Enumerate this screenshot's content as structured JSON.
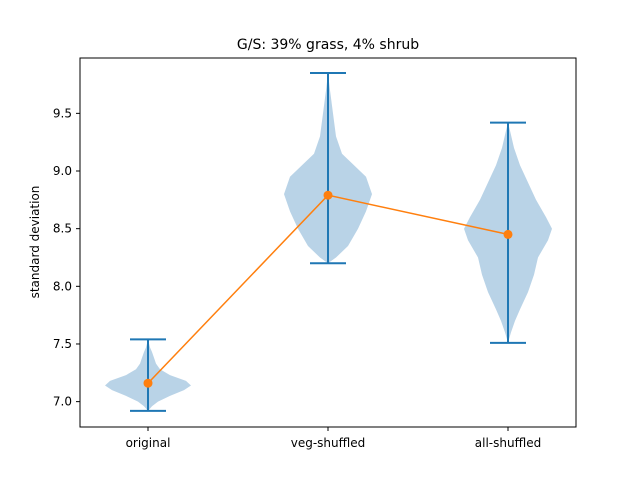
{
  "chart_data": {
    "type": "violin",
    "title": "G/S: 39% grass, 4% shrub",
    "xlabel": "",
    "ylabel": "standard deviation",
    "categories": [
      "original",
      "veg-shuffled",
      "all-shuffled"
    ],
    "ylim": [
      6.78,
      9.98
    ],
    "yticks": [
      7.0,
      7.5,
      8.0,
      8.5,
      9.0,
      9.5
    ],
    "ytick_labels": [
      "7.0",
      "7.5",
      "8.0",
      "8.5",
      "9.0",
      "9.5"
    ],
    "violins": [
      {
        "category": "original",
        "min": 6.92,
        "max": 7.54,
        "mean": 7.16
      },
      {
        "category": "veg-shuffled",
        "min": 8.2,
        "max": 9.85,
        "mean": 8.79
      },
      {
        "category": "all-shuffled",
        "min": 7.51,
        "max": 9.42,
        "mean": 8.45
      }
    ],
    "mean_line": {
      "values": [
        7.16,
        8.79,
        8.45
      ]
    },
    "colors": {
      "violin_fill": "#b9d3e7",
      "whisker": "#1f77b4",
      "mean_line": "#ff7f0e"
    },
    "grid": false,
    "legend": "none"
  }
}
